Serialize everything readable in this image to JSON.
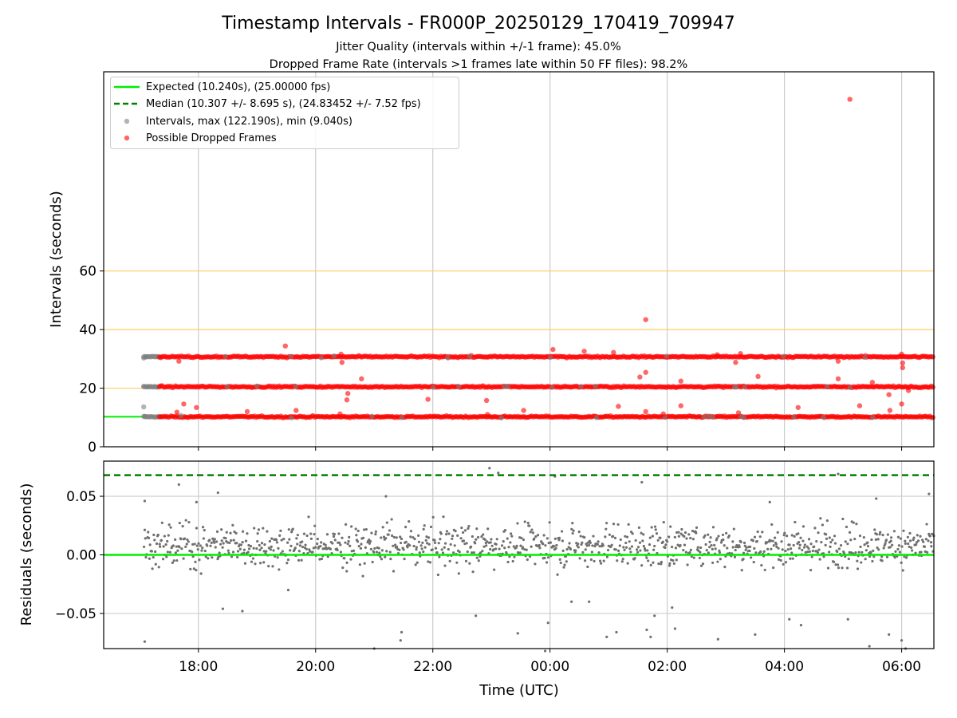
{
  "figure": {
    "title": "Timestamp Intervals - FR000P_20250129_170419_709947",
    "subtitle_1": "Jitter Quality (intervals within +/-1 frame): 45.0%",
    "subtitle_2": "Dropped Frame Rate (intervals >1 frames late within 50 FF files): 98.2%"
  },
  "legend": {
    "expected": "Expected (10.240s), (25.00000 fps)",
    "median": "Median (10.307 +/- 8.695 s), (24.83452 +/- 7.52 fps)",
    "intervals": "Intervals, max (122.190s), min (9.040s)",
    "dropped": "Possible Dropped Frames"
  },
  "colors": {
    "expected": "#00ee00",
    "median": "#008000",
    "intervals": "#808080",
    "dropped": "#ff0000",
    "ref_lines": "#ffcc66",
    "grid": "#cccccc"
  },
  "chart_data": [
    {
      "type": "scatter",
      "ylabel": "Intervals (seconds)",
      "xlim": [
        "16:23",
        "06:33"
      ],
      "ylim": [
        0,
        128
      ],
      "yticks": [
        "0",
        "20",
        "40",
        "60"
      ],
      "ytick_values": [
        0,
        20,
        40,
        60
      ],
      "reference_lines_y": [
        20,
        40,
        60
      ],
      "expected_y": 10.24,
      "grid": "vertical",
      "legend_position": "top-left",
      "series": [
        {
          "name": "Intervals, max (122.190s), min (9.040s)",
          "bands": [
            10.24,
            20.48,
            30.72
          ],
          "x_range": [
            "17:04",
            "06:33"
          ],
          "points": [
            {
              "x": "17:04",
              "y": 30.3
            },
            {
              "x": "17:04",
              "y": 20.5
            },
            {
              "x": "17:04",
              "y": 13.6
            },
            {
              "x": "17:05",
              "y": 10.4
            },
            {
              "x": "17:06",
              "y": 30.8
            },
            {
              "x": "17:08",
              "y": 20.5
            }
          ]
        },
        {
          "name": "Possible Dropped Frames",
          "bands": [
            10.24,
            20.48,
            30.72
          ],
          "x_range": [
            "17:20",
            "06:33"
          ],
          "outliers": [
            {
              "x": "17:40",
              "y": 29.2
            },
            {
              "x": "17:45",
              "y": 14.6
            },
            {
              "x": "17:58",
              "y": 13.4
            },
            {
              "x": "17:38",
              "y": 11.8
            },
            {
              "x": "19:29",
              "y": 34.4
            },
            {
              "x": "18:50",
              "y": 12.0
            },
            {
              "x": "19:40",
              "y": 12.4
            },
            {
              "x": "20:26",
              "y": 31.6
            },
            {
              "x": "20:27",
              "y": 28.8
            },
            {
              "x": "20:32",
              "y": 16.0
            },
            {
              "x": "20:33",
              "y": 18.2
            },
            {
              "x": "20:47",
              "y": 23.2
            },
            {
              "x": "20:25",
              "y": 11.2
            },
            {
              "x": "21:55",
              "y": 16.2
            },
            {
              "x": "22:55",
              "y": 15.8
            },
            {
              "x": "22:56",
              "y": 11.0
            },
            {
              "x": "23:33",
              "y": 12.4
            },
            {
              "x": "00:03",
              "y": 33.2
            },
            {
              "x": "00:35",
              "y": 32.6
            },
            {
              "x": "01:05",
              "y": 32.2
            },
            {
              "x": "01:10",
              "y": 13.8
            },
            {
              "x": "01:32",
              "y": 23.8
            },
            {
              "x": "01:38",
              "y": 43.4
            },
            {
              "x": "01:38",
              "y": 25.4
            },
            {
              "x": "01:38",
              "y": 12.0
            },
            {
              "x": "01:56",
              "y": 11.2
            },
            {
              "x": "02:14",
              "y": 22.4
            },
            {
              "x": "02:14",
              "y": 14.0
            },
            {
              "x": "02:51",
              "y": 31.4
            },
            {
              "x": "03:10",
              "y": 28.8
            },
            {
              "x": "03:15",
              "y": 31.8
            },
            {
              "x": "03:33",
              "y": 24.0
            },
            {
              "x": "03:13",
              "y": 11.6
            },
            {
              "x": "04:14",
              "y": 13.4
            },
            {
              "x": "04:55",
              "y": 29.2
            },
            {
              "x": "04:55",
              "y": 23.2
            },
            {
              "x": "05:07",
              "y": 118.6
            },
            {
              "x": "05:17",
              "y": 14.0
            },
            {
              "x": "05:30",
              "y": 22.0
            },
            {
              "x": "05:47",
              "y": 17.8
            },
            {
              "x": "05:48",
              "y": 12.4
            },
            {
              "x": "06:00",
              "y": 31.6
            },
            {
              "x": "06:01",
              "y": 28.6
            },
            {
              "x": "06:01",
              "y": 27.0
            },
            {
              "x": "06:00",
              "y": 14.6
            },
            {
              "x": "06:07",
              "y": 19.2
            }
          ]
        }
      ]
    },
    {
      "type": "scatter",
      "xlabel": "Time (UTC)",
      "ylabel": "Residuals (seconds)",
      "xlim": [
        "16:23",
        "06:33"
      ],
      "ylim": [
        -0.08,
        0.08
      ],
      "xticks": [
        "18:00",
        "20:00",
        "22:00",
        "00:00",
        "02:00",
        "04:00",
        "06:00"
      ],
      "yticks": [
        "0.05",
        "0.00",
        "−0.05"
      ],
      "ytick_values": [
        0.05,
        0.0,
        -0.05
      ],
      "zero_line_y": 0.0,
      "median_line_y": 0.068,
      "grid": "both",
      "series": [
        {
          "name": "Residuals",
          "x_range": [
            "17:04",
            "06:33"
          ],
          "center": 0.008,
          "typical_spread": 0.015,
          "outliers": [
            {
              "x": "17:05",
              "y": 0.046
            },
            {
              "x": "17:05",
              "y": -0.074
            },
            {
              "x": "17:40",
              "y": 0.06
            },
            {
              "x": "17:58",
              "y": 0.045
            },
            {
              "x": "18:20",
              "y": 0.053
            },
            {
              "x": "18:25",
              "y": -0.046
            },
            {
              "x": "18:45",
              "y": -0.048
            },
            {
              "x": "19:32",
              "y": -0.03
            },
            {
              "x": "21:00",
              "y": -0.08
            },
            {
              "x": "21:12",
              "y": 0.05
            },
            {
              "x": "21:28",
              "y": -0.066
            },
            {
              "x": "21:27",
              "y": -0.073
            },
            {
              "x": "22:44",
              "y": -0.052
            },
            {
              "x": "22:58",
              "y": 0.074
            },
            {
              "x": "23:07",
              "y": 0.07
            },
            {
              "x": "23:27",
              "y": -0.067
            },
            {
              "x": "23:58",
              "y": -0.058
            },
            {
              "x": "23:55",
              "y": -0.082
            },
            {
              "x": "00:05",
              "y": 0.067
            },
            {
              "x": "00:22",
              "y": -0.04
            },
            {
              "x": "00:40",
              "y": -0.04
            },
            {
              "x": "00:58",
              "y": -0.07
            },
            {
              "x": "01:08",
              "y": -0.066
            },
            {
              "x": "01:34",
              "y": 0.062
            },
            {
              "x": "01:39",
              "y": -0.064
            },
            {
              "x": "01:43",
              "y": -0.07
            },
            {
              "x": "01:47",
              "y": -0.052
            },
            {
              "x": "02:05",
              "y": -0.045
            },
            {
              "x": "02:08",
              "y": -0.063
            },
            {
              "x": "02:52",
              "y": -0.072
            },
            {
              "x": "03:30",
              "y": -0.068
            },
            {
              "x": "03:45",
              "y": 0.045
            },
            {
              "x": "04:05",
              "y": -0.055
            },
            {
              "x": "04:17",
              "y": -0.06
            },
            {
              "x": "04:55",
              "y": 0.069
            },
            {
              "x": "05:05",
              "y": -0.055
            },
            {
              "x": "05:34",
              "y": 0.048
            },
            {
              "x": "05:47",
              "y": -0.068
            },
            {
              "x": "06:00",
              "y": -0.073
            },
            {
              "x": "06:04",
              "y": -0.08
            },
            {
              "x": "06:28",
              "y": 0.052
            },
            {
              "x": "05:27",
              "y": -0.078
            }
          ]
        }
      ]
    }
  ]
}
